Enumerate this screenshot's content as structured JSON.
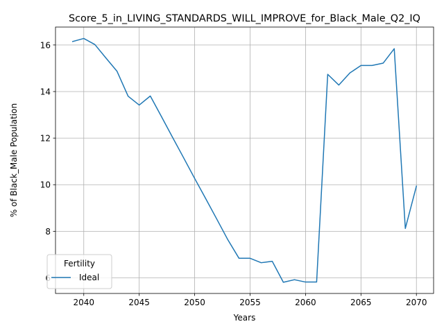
{
  "chart_data": {
    "type": "line",
    "title": "Score_5_in_LIVING_STANDARDS_WILL_IMPROVE_for_Black_Male_Q2_IQ",
    "xlabel": "Years",
    "ylabel": "% of Black_Male Population",
    "xlim": [
      2037.45,
      2071.55
    ],
    "ylim": [
      5.33,
      16.77
    ],
    "xticks": [
      2040,
      2045,
      2050,
      2055,
      2060,
      2065,
      2070
    ],
    "yticks": [
      6,
      8,
      10,
      12,
      14,
      16
    ],
    "grid": true,
    "legend": {
      "title": "Fertility",
      "position": "lower-left"
    },
    "series": [
      {
        "name": "Ideal",
        "color": "#1f77b4",
        "x": [
          2039,
          2040,
          2041,
          2042,
          2043,
          2044,
          2045,
          2046,
          2047,
          2048,
          2049,
          2050,
          2051,
          2052,
          2053,
          2054,
          2055,
          2056,
          2057,
          2058,
          2059,
          2060,
          2061,
          2062,
          2063,
          2064,
          2065,
          2066,
          2067,
          2068,
          2069,
          2070
        ],
        "values": [
          16.15,
          16.28,
          16.02,
          15.44,
          14.87,
          13.8,
          13.42,
          13.81,
          12.93,
          12.04,
          11.16,
          10.27,
          9.4,
          8.52,
          7.63,
          6.84,
          6.84,
          6.65,
          6.71,
          5.81,
          5.92,
          5.82,
          5.82,
          14.74,
          14.28,
          14.8,
          15.12,
          15.12,
          15.22,
          15.84,
          8.12,
          9.94
        ]
      }
    ]
  }
}
